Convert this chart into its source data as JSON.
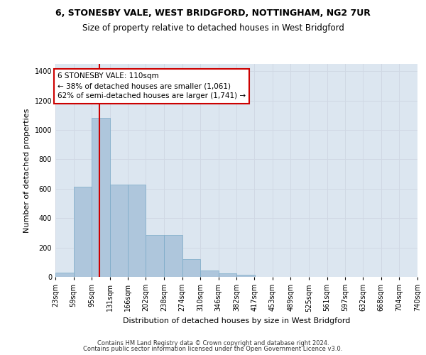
{
  "title_line1": "6, STONESBY VALE, WEST BRIDGFORD, NOTTINGHAM, NG2 7UR",
  "title_line2": "Size of property relative to detached houses in West Bridgford",
  "xlabel": "Distribution of detached houses by size in West Bridgford",
  "ylabel": "Number of detached properties",
  "footer_line1": "Contains HM Land Registry data © Crown copyright and database right 2024.",
  "footer_line2": "Contains public sector information licensed under the Open Government Licence v3.0.",
  "annotation_title": "6 STONESBY VALE: 110sqm",
  "annotation_line1": "← 38% of detached houses are smaller (1,061)",
  "annotation_line2": "62% of semi-detached houses are larger (1,741) →",
  "property_size": 110,
  "bin_edges": [
    23,
    59,
    95,
    131,
    166,
    202,
    238,
    274,
    310,
    346,
    382,
    417,
    453,
    489,
    525,
    561,
    597,
    632,
    668,
    704,
    740
  ],
  "bin_labels": [
    "23sqm",
    "59sqm",
    "95sqm",
    "131sqm",
    "166sqm",
    "202sqm",
    "238sqm",
    "274sqm",
    "310sqm",
    "346sqm",
    "382sqm",
    "417sqm",
    "453sqm",
    "489sqm",
    "525sqm",
    "561sqm",
    "597sqm",
    "632sqm",
    "668sqm",
    "704sqm",
    "740sqm"
  ],
  "bar_heights": [
    30,
    615,
    1085,
    630,
    630,
    285,
    285,
    120,
    42,
    25,
    15,
    0,
    0,
    0,
    0,
    0,
    0,
    0,
    0,
    0
  ],
  "bar_color": "#aec6dc",
  "bar_edge_color": "#7aaac8",
  "vline_color": "#cc0000",
  "vline_x": 110,
  "ylim": [
    0,
    1450
  ],
  "yticks": [
    0,
    200,
    400,
    600,
    800,
    1000,
    1200,
    1400
  ],
  "grid_color": "#d0d8e4",
  "bg_color": "#dce6f0",
  "annotation_box_color": "#cc0000",
  "title_fontsize": 9,
  "subtitle_fontsize": 8.5,
  "axis_label_fontsize": 8,
  "tick_fontsize": 7,
  "footer_fontsize": 6
}
